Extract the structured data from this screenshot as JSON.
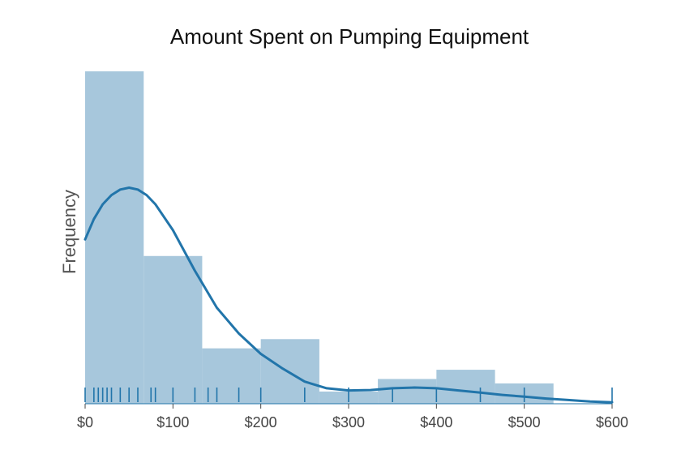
{
  "chart_data": {
    "type": "histogram",
    "title": "Amount Spent on Pumping Equipment",
    "xlabel": "",
    "ylabel": "Frequency",
    "xlim": [
      0,
      600
    ],
    "x_ticks": [
      "$0",
      "$100",
      "$200",
      "$300",
      "$400",
      "$500",
      "$600"
    ],
    "x_tick_values": [
      0,
      100,
      200,
      300,
      400,
      500,
      600
    ],
    "bins": [
      {
        "start": 0,
        "end": 66.7,
        "count": 9
      },
      {
        "start": 66.7,
        "end": 133.3,
        "count": 4
      },
      {
        "start": 133.3,
        "end": 200,
        "count": 1.5
      },
      {
        "start": 200,
        "end": 266.7,
        "count": 1.75
      },
      {
        "start": 266.7,
        "end": 333.3,
        "count": 0.33
      },
      {
        "start": 333.3,
        "end": 400,
        "count": 0.67
      },
      {
        "start": 400,
        "end": 466.7,
        "count": 0.92
      },
      {
        "start": 466.7,
        "end": 533.3,
        "count": 0.55
      }
    ],
    "ylim": [
      0,
      9
    ],
    "rug": [
      0,
      10,
      15,
      20,
      25,
      30,
      40,
      50,
      60,
      75,
      80,
      100,
      125,
      140,
      150,
      175,
      200,
      250,
      300,
      350,
      400,
      450,
      500,
      600
    ],
    "kde": {
      "x": [
        0,
        10,
        20,
        30,
        40,
        50,
        60,
        70,
        80,
        100,
        125,
        150,
        175,
        200,
        225,
        250,
        275,
        300,
        325,
        350,
        375,
        400,
        425,
        450,
        475,
        500,
        525,
        550,
        575,
        600
      ],
      "y": [
        4.45,
        5.0,
        5.4,
        5.65,
        5.8,
        5.85,
        5.8,
        5.65,
        5.4,
        4.7,
        3.6,
        2.6,
        1.9,
        1.35,
        0.95,
        0.6,
        0.42,
        0.36,
        0.37,
        0.42,
        0.44,
        0.42,
        0.36,
        0.3,
        0.24,
        0.19,
        0.14,
        0.1,
        0.06,
        0.04
      ]
    },
    "colors": {
      "bar": "#a7c7dc",
      "line": "#2275aa",
      "rug": "#2275aa",
      "axis": "#2275aa"
    },
    "grid": false,
    "legend": "none"
  }
}
